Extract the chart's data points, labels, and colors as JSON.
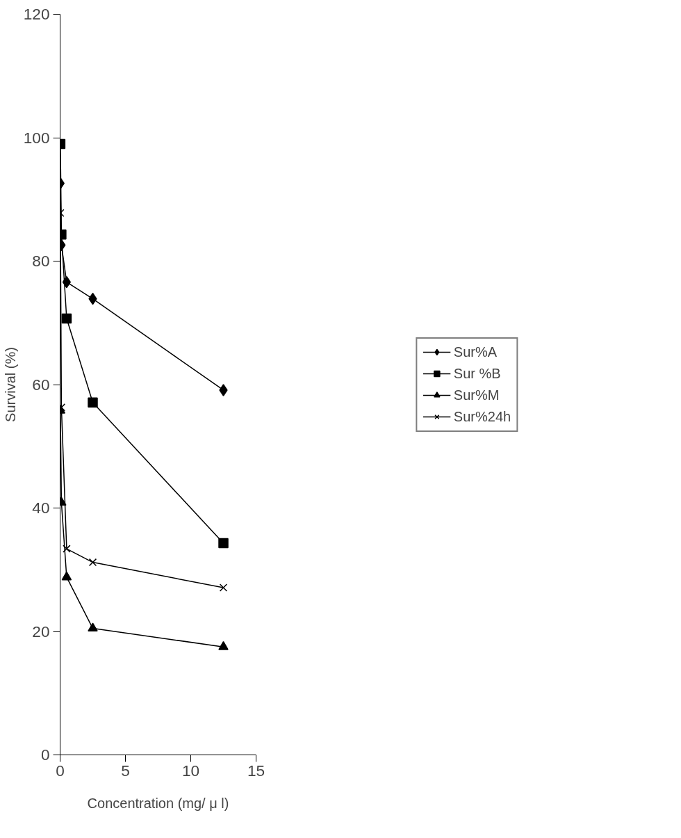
{
  "chart_data": {
    "type": "line",
    "xlabel": "Concentration (mg/ μ l)",
    "ylabel": "Survival (%)",
    "xlim": [
      0,
      15
    ],
    "xticks": [
      0,
      5,
      10,
      15
    ],
    "ylim": [
      0,
      120
    ],
    "yticks": [
      0,
      20,
      40,
      60,
      80,
      100,
      120
    ],
    "grid": false,
    "legend": "right",
    "line_style": "solid",
    "x": [
      0.02,
      0.1,
      0.5,
      2.5,
      12.5
    ],
    "series": [
      {
        "name": "Sur%A",
        "color": "#000000",
        "marker": "diamond",
        "values": [
          92.6,
          82.6,
          76.6,
          73.9,
          59.1
        ]
      },
      {
        "name": "Sur %B",
        "color": "#000000",
        "marker": "square",
        "values": [
          99,
          84.3,
          70.7,
          57.1,
          34.3
        ]
      },
      {
        "name": "Sur%M",
        "color": "#000000",
        "marker": "triangle",
        "values": [
          55.8,
          40.9,
          28.8,
          20.5,
          17.5
        ]
      },
      {
        "name": "Sur%24h",
        "color": "#000000",
        "marker": "cross",
        "values": [
          87.8,
          56.3,
          33.4,
          31.2,
          27.1
        ]
      }
    ]
  }
}
